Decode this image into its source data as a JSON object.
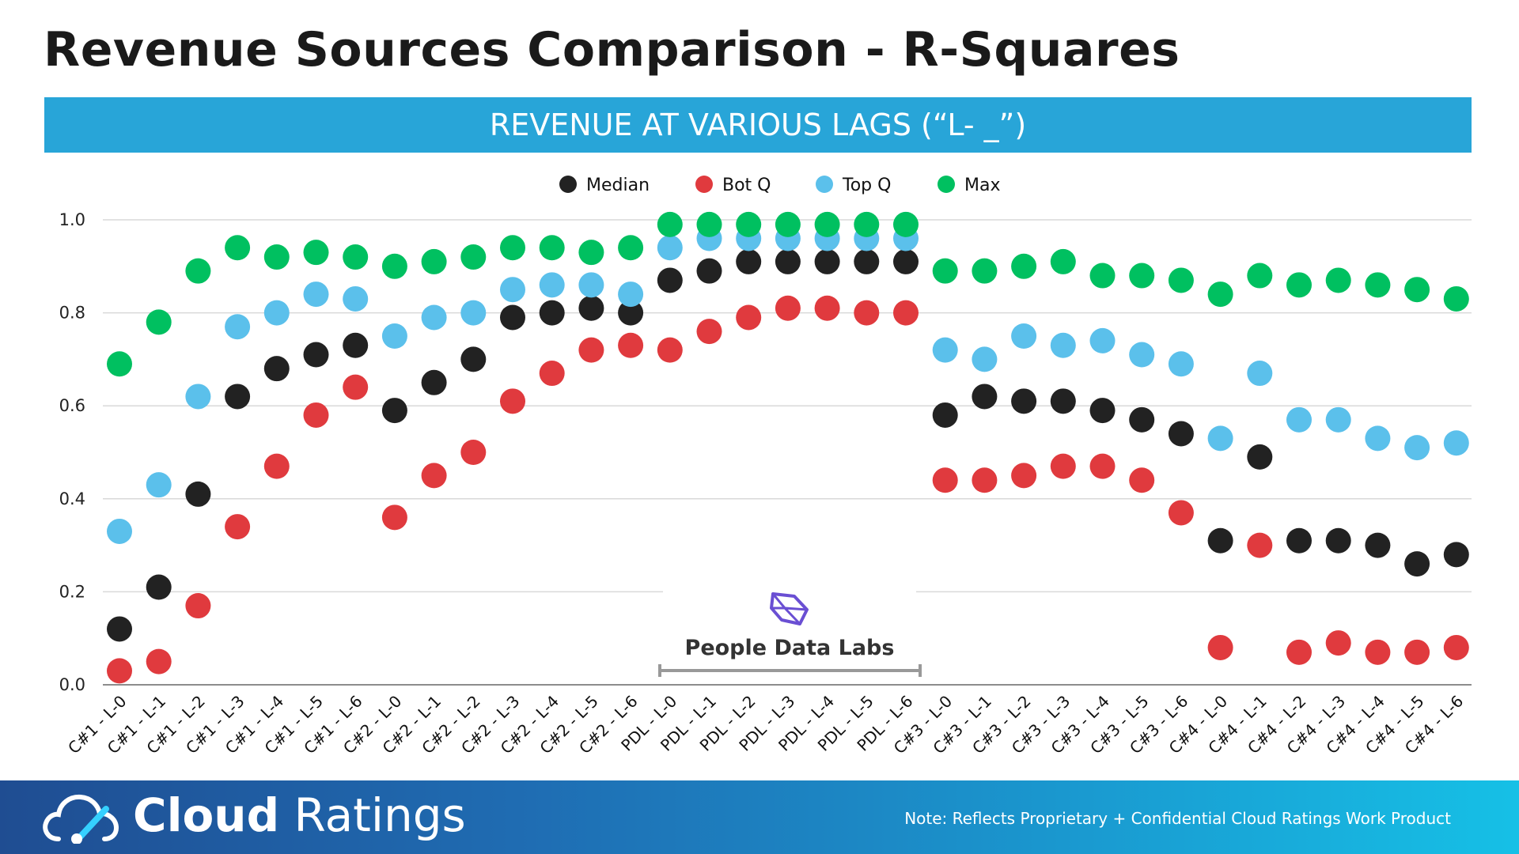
{
  "page": {
    "title": "Revenue Sources Comparison - R-Squares",
    "banner": "REVENUE AT VARIOUS LAGS (“L- _”)"
  },
  "annotation": {
    "label": "People Data Labs",
    "icon": "people-data-labs-logo-icon"
  },
  "footer": {
    "brand_bold": "Cloud",
    "brand_regular": " Ratings",
    "note": "Note: Reflects Proprietary + Confidential Cloud Ratings Work Product",
    "icon": "cloud-gauge-icon"
  },
  "colors": {
    "median": "#222222",
    "bot_q": "#e03a3e",
    "top_q": "#5bc0eb",
    "max": "#00c060",
    "banner": "#28a5d8",
    "grid": "#d9d9d9"
  },
  "chart_data": {
    "type": "scatter",
    "title": "REVENUE AT VARIOUS LAGS (“L- _”)",
    "xlabel": "",
    "ylabel": "",
    "ylim": [
      0,
      1.0
    ],
    "yticks": [
      "0.0",
      "0.2",
      "0.4",
      "0.6",
      "0.8",
      "1.0"
    ],
    "legend_position": "top-center",
    "grid": true,
    "categories": [
      "C#1 - L-0",
      "C#1 - L-1",
      "C#1 - L-2",
      "C#1 - L-3",
      "C#1 - L-4",
      "C#1 - L-5",
      "C#1 - L-6",
      "C#2 - L-0",
      "C#2 - L-1",
      "C#2 - L-2",
      "C#2 - L-3",
      "C#2 - L-4",
      "C#2 - L-5",
      "C#2 - L-6",
      "PDL - L-0",
      "PDL - L-1",
      "PDL - L-2",
      "PDL - L-3",
      "PDL - L-4",
      "PDL - L-5",
      "PDL - L-6",
      "C#3 - L-0",
      "C#3 - L-1",
      "C#3 - L-2",
      "C#3 - L-3",
      "C#3 - L-4",
      "C#3 - L-5",
      "C#3 - L-6",
      "C#4 - L-0",
      "C#4 - L-1",
      "C#4 - L-2",
      "C#4 - L-3",
      "C#4 - L-4",
      "C#4 - L-5",
      "C#4 - L-6"
    ],
    "series": [
      {
        "name": "Median",
        "color": "#222222",
        "values": [
          0.12,
          0.21,
          0.41,
          0.62,
          0.68,
          0.71,
          0.73,
          0.59,
          0.65,
          0.7,
          0.79,
          0.8,
          0.81,
          0.8,
          0.87,
          0.89,
          0.91,
          0.91,
          0.91,
          0.91,
          0.91,
          0.58,
          0.62,
          0.61,
          0.61,
          0.59,
          0.57,
          0.54,
          0.31,
          0.49,
          0.31,
          0.31,
          0.3,
          0.26,
          0.28
        ]
      },
      {
        "name": "Bot Q",
        "color": "#e03a3e",
        "values": [
          0.03,
          0.05,
          0.17,
          0.34,
          0.47,
          0.58,
          0.64,
          0.36,
          0.45,
          0.5,
          0.61,
          0.67,
          0.72,
          0.73,
          0.72,
          0.76,
          0.79,
          0.81,
          0.81,
          0.8,
          0.8,
          0.44,
          0.44,
          0.45,
          0.47,
          0.47,
          0.44,
          0.37,
          0.08,
          0.3,
          0.07,
          0.09,
          0.07,
          0.07,
          0.08
        ]
      },
      {
        "name": "Top Q",
        "color": "#5bc0eb",
        "values": [
          0.33,
          0.43,
          0.62,
          0.77,
          0.8,
          0.84,
          0.83,
          0.75,
          0.79,
          0.8,
          0.85,
          0.86,
          0.86,
          0.84,
          0.94,
          0.96,
          0.96,
          0.96,
          0.96,
          0.96,
          0.96,
          0.72,
          0.7,
          0.75,
          0.73,
          0.74,
          0.71,
          0.69,
          0.53,
          0.67,
          0.57,
          0.57,
          0.53,
          0.51,
          0.52
        ]
      },
      {
        "name": "Max",
        "color": "#00c060",
        "values": [
          0.69,
          0.78,
          0.89,
          0.94,
          0.92,
          0.93,
          0.92,
          0.9,
          0.91,
          0.92,
          0.94,
          0.94,
          0.93,
          0.94,
          0.99,
          0.99,
          0.99,
          0.99,
          0.99,
          0.99,
          0.99,
          0.89,
          0.89,
          0.9,
          0.91,
          0.88,
          0.88,
          0.87,
          0.84,
          0.88,
          0.86,
          0.87,
          0.86,
          0.85,
          0.83
        ]
      }
    ]
  }
}
